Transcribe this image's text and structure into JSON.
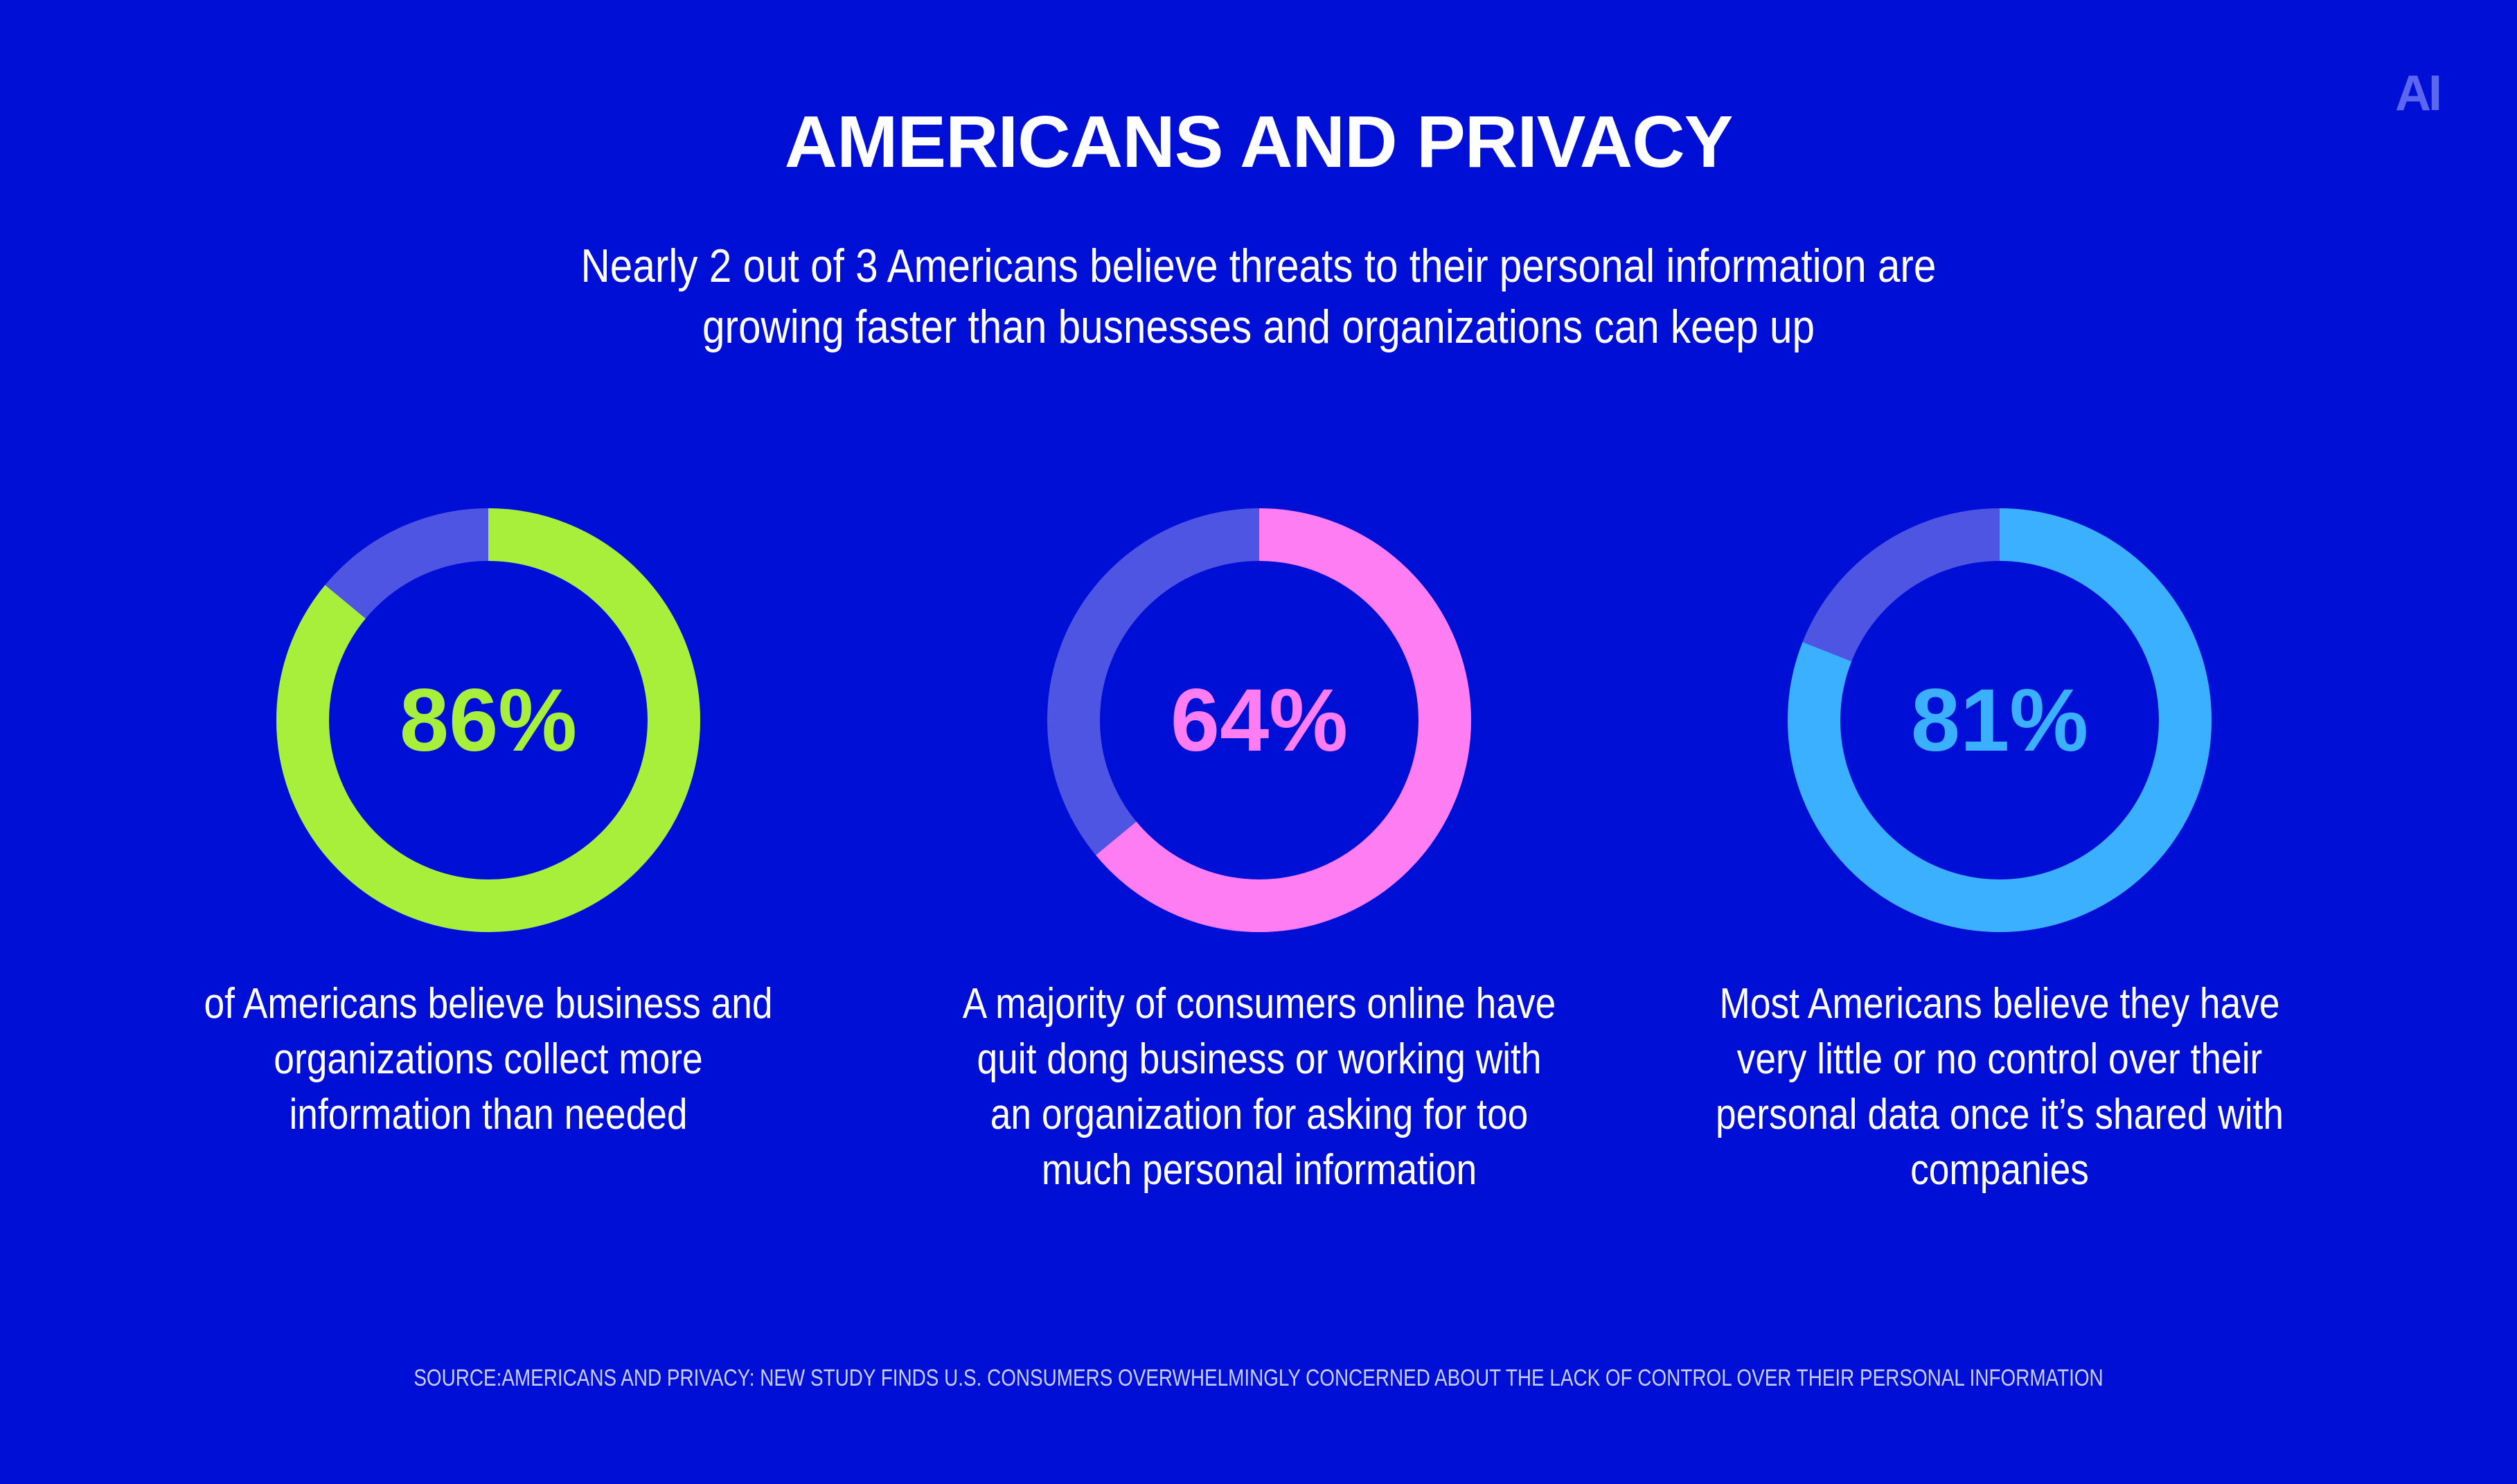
{
  "brand": {
    "logo_text": "AI",
    "logo_color": "#5b67f0"
  },
  "colors": {
    "background": "#000fd6",
    "track": "#4f55e3"
  },
  "header": {
    "title": "AMERICANS AND PRIVACY",
    "subtitle": "Nearly 2 out of 3 Americans believe threats to their personal information are growing faster than busnesses and organizations can keep up"
  },
  "chart_data": [
    {
      "type": "pie",
      "value": 86,
      "label": "86%",
      "color": "#a8ef3c",
      "description": "of Americans believe business and organizations collect more information than needed"
    },
    {
      "type": "pie",
      "value": 64,
      "label": "64%",
      "color": "#ff7df2",
      "description": "A majority of consumers online have quit dong business or working with an organization for asking for too much personal information"
    },
    {
      "type": "pie",
      "value": 81,
      "label": "81%",
      "color": "#3ab0ff",
      "description": "Most Americans believe they have very little or no control over their personal data once it’s shared with companies"
    }
  ],
  "footer": {
    "source": "SOURCE:AMERICANS AND PRIVACY: NEW STUDY FINDS U.S. CONSUMERS OVERWHELMINGLY CONCERNED ABOUT THE LACK OF CONTROL OVER THEIR PERSONAL INFORMATION"
  }
}
